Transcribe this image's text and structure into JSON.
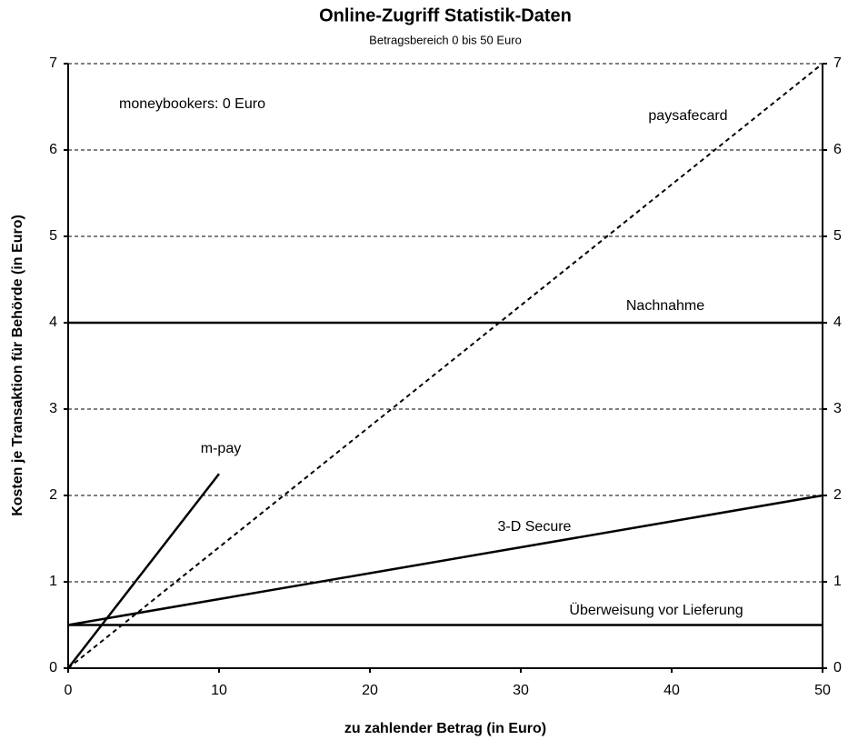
{
  "chart_data": {
    "type": "line",
    "title": "Online-Zugriff Statistik-Daten",
    "subtitle": "Betragsbereich 0 bis 50 Euro",
    "x_label": "zu zahlender Betrag (in Euro)",
    "y_label": "Kosten je Transaktion für Behörde (in Euro)",
    "annotations": [
      "moneybookers: 0 Euro"
    ],
    "series": [
      {
        "name": "m-pay",
        "color": "#000000",
        "style": "solid",
        "x": [
          0,
          10
        ],
        "values": [
          0,
          2.25
        ]
      },
      {
        "name": "paysafecard",
        "color": "#000000",
        "style": "dashed",
        "x": [
          0,
          50
        ],
        "values": [
          0,
          7
        ]
      },
      {
        "name": "Nachnahme",
        "color": "#000000",
        "style": "solid",
        "x": [
          0,
          50
        ],
        "values": [
          4,
          4
        ]
      },
      {
        "name": "3-D Secure",
        "color": "#000000",
        "style": "solid",
        "x": [
          0,
          10,
          20,
          30,
          40,
          50
        ],
        "values": [
          0.5,
          0.8,
          1.1,
          1.4,
          1.7,
          2.0
        ]
      },
      {
        "name": "Überweisung vor Lieferung",
        "color": "#000000",
        "style": "solid",
        "x": [
          0,
          50
        ],
        "values": [
          0.5,
          0.5
        ]
      }
    ],
    "xlim": [
      0,
      50
    ],
    "xticks": [
      0,
      10,
      20,
      30,
      40,
      50
    ],
    "ylim": [
      0,
      7
    ],
    "yticks": [
      0,
      1,
      2,
      3,
      4,
      5,
      6,
      7
    ],
    "grid": true
  }
}
